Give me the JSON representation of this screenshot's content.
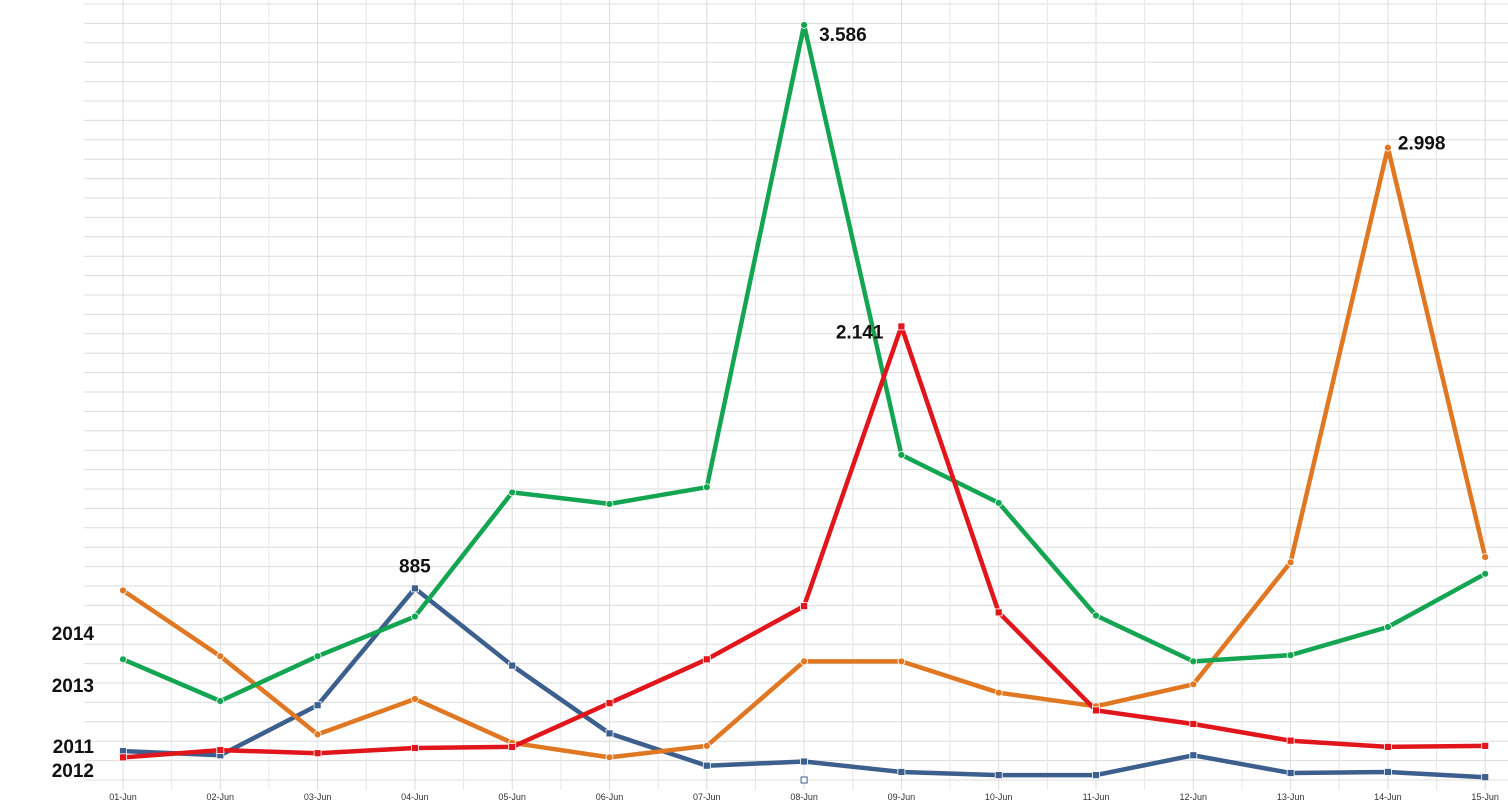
{
  "chart_data": {
    "type": "line",
    "title": "",
    "xlabel": "",
    "ylabel": "",
    "grid": true,
    "legend": "none",
    "categories": [
      "01-Jun",
      "02-Jun",
      "03-Jun",
      "04-Jun",
      "05-Jun",
      "06-Jun",
      "07-Jun",
      "08-Jun",
      "09-Jun",
      "10-Jun",
      "11-Jun",
      "12-Jun",
      "13-Jun",
      "14-Jun",
      "15-Jun"
    ],
    "ylim": [
      0,
      3800
    ],
    "series": [
      {
        "name": "2011",
        "color": "#e0161c",
        "marker": "square",
        "values": [
          75,
          110,
          95,
          120,
          125,
          335,
          545,
          800,
          2141,
          770,
          300,
          235,
          155,
          125,
          130
        ]
      },
      {
        "name": "2012",
        "color": "#3c5f8e",
        "marker": "square",
        "values": [
          105,
          85,
          325,
          885,
          515,
          190,
          35,
          55,
          5,
          -10,
          -10,
          85,
          0,
          5,
          -20
        ]
      },
      {
        "name": "2013",
        "color": "#14a552",
        "marker": "circle",
        "values": [
          545,
          345,
          560,
          750,
          1345,
          1290,
          1370,
          3586,
          1525,
          1295,
          755,
          535,
          565,
          700,
          955
        ]
      },
      {
        "name": "2014",
        "color": "#e07722",
        "marker": "circle",
        "values": [
          875,
          560,
          185,
          355,
          145,
          75,
          130,
          535,
          535,
          385,
          320,
          425,
          1010,
          2998,
          1035
        ]
      }
    ],
    "annotations": [
      {
        "text": "3.586",
        "series": "2013",
        "index": 7
      },
      {
        "text": "2.141",
        "series": "2011",
        "index": 8
      },
      {
        "text": "2.998",
        "series": "2014",
        "index": 13
      },
      {
        "text": "885",
        "series": "2012",
        "index": 3
      }
    ],
    "series_labels": [
      "2014",
      "2013",
      "2011",
      "2012"
    ]
  }
}
